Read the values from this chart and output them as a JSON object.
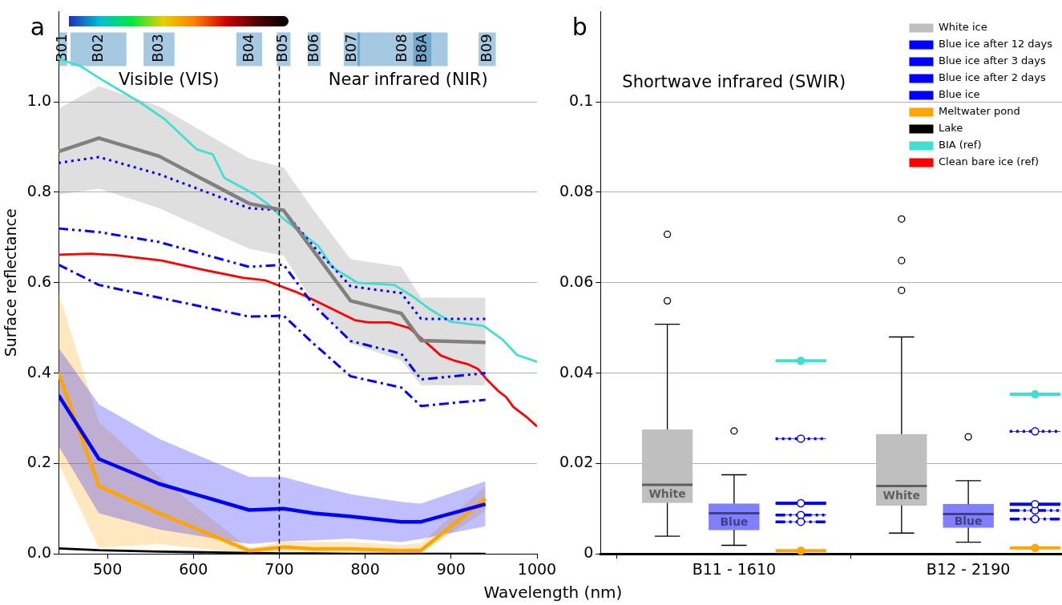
{
  "chart_data": [
    {
      "type": "line",
      "title": "a",
      "xlabel": "Wavelength (nm)",
      "ylabel": "Surface reflectance",
      "x": [
        443,
        490,
        560,
        665,
        705,
        740,
        783,
        842,
        865,
        940
      ],
      "xlim": [
        443,
        1000
      ],
      "xticks": [
        500,
        600,
        700,
        800,
        900,
        1000
      ],
      "ylim": [
        0,
        1.2
      ],
      "yticks": [
        {
          "value": 0,
          "label": "0.0"
        },
        {
          "value": 0.2,
          "label": "0.2"
        },
        {
          "value": 0.4,
          "label": "0.4"
        },
        {
          "value": 0.6,
          "label": "0.6"
        },
        {
          "value": 0.8,
          "label": "0.8"
        },
        {
          "value": 1.0,
          "label": "1.0"
        }
      ],
      "grid": "y",
      "series": [
        {
          "color": "#808080",
          "values": [
            0.89,
            0.92,
            0.88,
            0.775,
            0.76,
            0.67,
            0.56,
            0.532,
            0.472,
            0.468
          ],
          "upper": [
            0.985,
            1.035,
            0.99,
            0.875,
            0.855,
            0.76,
            0.652,
            0.635,
            0.567,
            0.567
          ],
          "lower": [
            0.795,
            0.808,
            0.765,
            0.675,
            0.66,
            0.555,
            0.466,
            0.428,
            0.373,
            0.373
          ]
        },
        {
          "color": "#0000ff",
          "line_style": "dotted",
          "values": [
            0.865,
            0.878,
            0.84,
            0.765,
            0.76,
            0.68,
            0.592,
            0.577,
            0.52,
            0.52
          ]
        },
        {
          "color": "#0000ff",
          "line_style": "dashdotdot",
          "values": [
            0.72,
            0.712,
            0.69,
            0.635,
            0.64,
            0.55,
            0.471,
            0.443,
            0.386,
            0.4
          ]
        },
        {
          "color": "#0000ff",
          "line_style": "dashdot",
          "values": [
            0.64,
            0.595,
            0.567,
            0.525,
            0.527,
            0.465,
            0.393,
            0.368,
            0.327,
            0.341
          ]
        },
        {
          "color": "#0000ff",
          "values": [
            0.351,
            0.21,
            0.155,
            0.097,
            0.1,
            0.09,
            0.083,
            0.071,
            0.071,
            0.11
          ],
          "upper": [
            0.456,
            0.331,
            0.255,
            0.17,
            0.17,
            0.152,
            0.132,
            0.115,
            0.111,
            0.161
          ],
          "lower": [
            0.239,
            0.09,
            0.054,
            0.022,
            0.028,
            0.03,
            0.034,
            0.026,
            0.033,
            0.061
          ]
        },
        {
          "color": "#ffa500",
          "values": [
            0.4,
            0.15,
            0.09,
            0.007,
            0.015,
            0.011,
            0.011,
            0.007,
            0.008,
            0.122
          ],
          "upper": [
            0.578,
            0.292,
            0.17,
            0.012,
            0.028,
            0.026,
            0.026,
            0.02,
            0.024,
            0.15
          ],
          "lower": [
            0.2,
            0.013,
            0.022,
            0.0,
            0.005,
            0.003,
            0.003,
            0.002,
            0.002,
            0.095
          ]
        },
        {
          "color": "#000000",
          "values": [
            0.012,
            0.008,
            0.005,
            0.002,
            0.001,
            0.001,
            0.0,
            0.0,
            0.0,
            0.0
          ]
        },
        {
          "color": "#40e0d0",
          "x": [
            443,
            468,
            491,
            538,
            567,
            604,
            622.5,
            636,
            670,
            690,
            702,
            746,
            762,
            791,
            834,
            855,
            874,
            899,
            938,
            960,
            976.7,
            1000
          ],
          "values": [
            1.095,
            1.08,
            1.052,
            0.999,
            0.961,
            0.895,
            0.884,
            0.832,
            0.797,
            0.769,
            0.746,
            0.68,
            0.634,
            0.6,
            0.595,
            0.57,
            0.543,
            0.514,
            0.504,
            0.474,
            0.44,
            0.425
          ]
        },
        {
          "color": "#ff0000",
          "x": [
            443,
            480.6,
            509,
            563,
            608,
            657.5,
            684,
            700.6,
            719,
            740,
            788,
            804,
            829,
            851,
            869.6,
            888,
            903,
            919,
            931.5,
            942,
            954,
            964,
            972.5,
            989,
            1000
          ],
          "values": [
            0.662,
            0.664,
            0.661,
            0.649,
            0.63,
            0.611,
            0.605,
            0.593,
            0.58,
            0.562,
            0.517,
            0.512,
            0.512,
            0.5,
            0.47,
            0.439,
            0.428,
            0.42,
            0.409,
            0.385,
            0.362,
            0.347,
            0.325,
            0.301,
            0.282
          ]
        }
      ],
      "ref_lines": [
        {
          "axis": "x",
          "value": 700,
          "color": "#000000",
          "line_style": "dashed"
        }
      ],
      "bands": [
        {
          "axis": "x",
          "from": 443,
          "to": 453,
          "label": "B01",
          "color": "#1f77b4"
        },
        {
          "axis": "x",
          "from": 457,
          "to": 522,
          "label": "B02",
          "color": "#1f77b4"
        },
        {
          "axis": "x",
          "from": 542,
          "to": 578,
          "label": "B03",
          "color": "#1f77b4"
        },
        {
          "axis": "x",
          "from": 650,
          "to": 680,
          "label": "B04",
          "color": "#1f77b4"
        },
        {
          "axis": "x",
          "from": 697,
          "to": 713,
          "label": "B05",
          "color": "#1f77b4"
        },
        {
          "axis": "x",
          "from": 733,
          "to": 748,
          "label": "B06",
          "color": "#1f77b4"
        },
        {
          "axis": "x",
          "from": 775,
          "to": 794,
          "label": "B07",
          "color": "#1f77b4"
        },
        {
          "axis": "x",
          "from": 791,
          "to": 896,
          "label": "B08",
          "color": "#1f77b4"
        },
        {
          "axis": "x",
          "from": 856,
          "to": 877,
          "label": "B8A",
          "color": "#1f77b4"
        },
        {
          "axis": "x",
          "from": 932,
          "to": 952,
          "label": "B09",
          "color": "#1f77b4"
        }
      ],
      "annotations": [
        "Visible (VIS)",
        "Near infrared (NIR)"
      ]
    },
    {
      "type": "box",
      "title": "b",
      "categories": [
        "B11 - 1610",
        "B12 - 2190"
      ],
      "ylim": [
        0,
        0.12
      ],
      "yticks": [
        0,
        0.02,
        0.04,
        0.06,
        0.08,
        0.1
      ],
      "grid": "y",
      "legend": "top right",
      "series": [
        {
          "name": "White ice",
          "type": "box",
          "color": "#bfbfbf",
          "boxes": [
            {
              "low": 0.0039,
              "q1": 0.0113,
              "median": 0.0153,
              "q3": 0.0275,
              "high": 0.0508,
              "outliers": [
                0.056,
                0.0707
              ]
            },
            {
              "low": 0.0046,
              "q1": 0.0107,
              "median": 0.015,
              "q3": 0.0265,
              "high": 0.048,
              "outliers": [
                0.0583,
                0.0649,
                0.0741
              ]
            }
          ]
        },
        {
          "type": "box",
          "color": "#8080ff",
          "boxes": [
            {
              "low": 0.0019,
              "q1": 0.0053,
              "median": 0.009,
              "q3": 0.0111,
              "high": 0.0175,
              "outliers": [
                0.0272
              ]
            },
            {
              "low": 0.0026,
              "q1": 0.0058,
              "median": 0.0088,
              "q3": 0.011,
              "high": 0.0162,
              "outliers": [
                0.0259
              ]
            }
          ]
        },
        {
          "name": "Blue ice after 12 days",
          "type": "box",
          "color": "#0000ff",
          "line_style": "dotted",
          "boxes": [
            {
              "low": 0.0255,
              "q1": 0.0255,
              "median": 0.0255,
              "q3": 0.0255,
              "high": 0.0255,
              "mean": 0.0255
            },
            {
              "low": 0.0271,
              "q1": 0.0271,
              "median": 0.0271,
              "q3": 0.0271,
              "high": 0.0271,
              "mean": 0.0271
            }
          ]
        },
        {
          "name": "Blue ice after 3 days",
          "type": "box",
          "color": "#0000ff",
          "line_style": "dashdotdot",
          "boxes": [
            {
              "low": 0.0086,
              "q1": 0.0086,
              "median": 0.0086,
              "q3": 0.0086,
              "high": 0.0086,
              "mean": 0.0086
            },
            {
              "low": 0.0096,
              "q1": 0.0096,
              "median": 0.0096,
              "q3": 0.0096,
              "high": 0.0096,
              "mean": 0.0096
            }
          ]
        },
        {
          "name": "Blue ice after 2 days",
          "type": "box",
          "color": "#0000ff",
          "line_style": "dashdot",
          "boxes": [
            {
              "low": 0.0071,
              "q1": 0.0071,
              "median": 0.0071,
              "q3": 0.0071,
              "high": 0.0071,
              "mean": 0.0071
            },
            {
              "low": 0.0077,
              "q1": 0.0077,
              "median": 0.0077,
              "q3": 0.0077,
              "high": 0.0077,
              "mean": 0.0077
            }
          ]
        },
        {
          "name": "Blue ice",
          "type": "box",
          "color": "#0000ff",
          "boxes": [
            {
              "low": 0.0112,
              "q1": 0.0112,
              "median": 0.0112,
              "q3": 0.0112,
              "high": 0.0112,
              "mean": 0.0112
            },
            {
              "low": 0.011,
              "q1": 0.011,
              "median": 0.011,
              "q3": 0.011,
              "high": 0.011,
              "mean": 0.011
            }
          ]
        },
        {
          "name": "Meltwater pond",
          "type": "box",
          "color": "#ffa500",
          "boxes": [
            {
              "low": 0.0007,
              "q1": 0.0007,
              "median": 0.0007,
              "q3": 0.0007,
              "high": 0.0007,
              "mean": 0.0007
            },
            {
              "low": 0.0013,
              "q1": 0.0013,
              "median": 0.0013,
              "q3": 0.0013,
              "high": 0.0013,
              "mean": 0.0013
            }
          ]
        },
        {
          "name": "Lake",
          "type": "box",
          "color": "#000000",
          "boxes": [
            null,
            null
          ]
        },
        {
          "name": "BIA (ref)",
          "type": "box",
          "color": "#40e0d0",
          "boxes": [
            {
              "low": 0.0427,
              "q1": 0.0427,
              "median": 0.0427,
              "q3": 0.0427,
              "high": 0.0427,
              "mean": 0.0427
            },
            {
              "low": 0.0353,
              "q1": 0.0353,
              "median": 0.0353,
              "q3": 0.0353,
              "high": 0.0353,
              "mean": 0.0353
            }
          ]
        },
        {
          "name": "Clean bare ice (ref)",
          "type": "box",
          "color": "#ff0000",
          "boxes": [
            null,
            null
          ]
        }
      ],
      "annotations": [
        "Shortwave infrared (SWIR)",
        "White",
        "Blue",
        "White",
        "Blue"
      ]
    }
  ]
}
